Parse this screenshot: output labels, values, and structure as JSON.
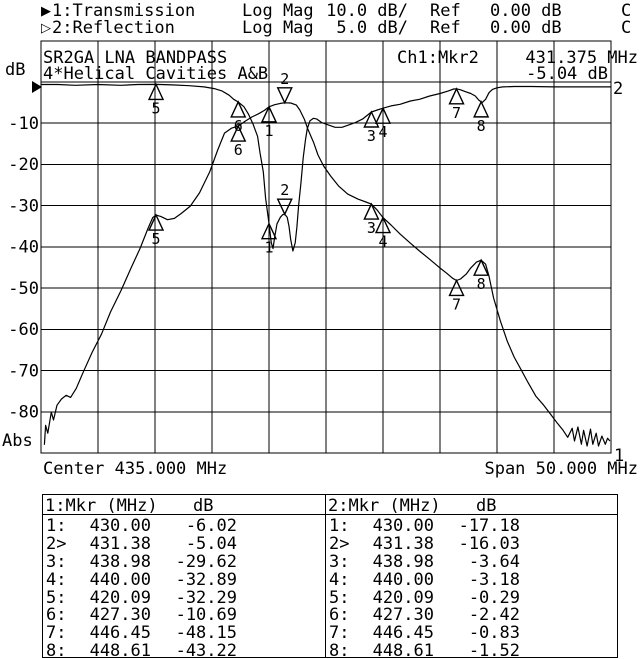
{
  "header": {
    "line1": {
      "indicator": "▶",
      "label": "1:Transmission",
      "format": "Log Mag",
      "scale": "10.0 dB/",
      "ref_label": "Ref",
      "ref_value": "0.00 dB",
      "cal": "C"
    },
    "line2": {
      "indicator": "▷",
      "label": "2:Reflection",
      "format": "Log Mag",
      "scale": "5.0 dB/",
      "ref_label": "Ref",
      "ref_value": "0.00 dB",
      "cal": "C"
    }
  },
  "plot": {
    "title_line1": "SR2GA LNA BANDPASS",
    "title_line2": "4*Helical Cavities A&B",
    "readout_channel": "Ch1:Mkr2",
    "readout_freq": "431.375 MHz",
    "readout_value": "-5.04 dB",
    "y_axis_unit": "dB",
    "y_axis_bottom": "Abs",
    "y_tick_labels": [
      "-10",
      "-20",
      "-30",
      "-40",
      "-50",
      "-60",
      "-70",
      "-80"
    ],
    "x_axis_center": "Center 435.000 MHz",
    "x_axis_span": "Span 50.000 MHz",
    "trace1_label": "1",
    "trace2_label": "2"
  },
  "chart_data": {
    "type": "line",
    "title": "SR2GA LNA BANDPASS - 4*Helical Cavities A&B",
    "x_center_mhz": 435.0,
    "x_span_mhz": 50.0,
    "xlim": [
      410,
      460
    ],
    "grid": {
      "x_divisions": 10,
      "y_divisions": 9,
      "grid_on": true
    },
    "series": [
      {
        "name": "Transmission",
        "scale_db_per_div": 10.0,
        "ref_db": 0.0,
        "ylim": [
          -90,
          0
        ],
        "points": [
          [
            410.3,
            -88
          ],
          [
            410.4,
            -83.3
          ],
          [
            410.6,
            -85.2
          ],
          [
            410.9,
            -80.1
          ],
          [
            411.1,
            -82
          ],
          [
            411.4,
            -78.4
          ],
          [
            411.8,
            -76.9
          ],
          [
            412.2,
            -76
          ],
          [
            412.6,
            -76.5
          ],
          [
            413.1,
            -74.3
          ],
          [
            413.7,
            -70.4
          ],
          [
            414.5,
            -65.5
          ],
          [
            415.3,
            -61.2
          ],
          [
            416.1,
            -55.8
          ],
          [
            417.0,
            -50.7
          ],
          [
            417.9,
            -45.1
          ],
          [
            418.7,
            -40.3
          ],
          [
            419.4,
            -35.4
          ],
          [
            419.8,
            -32.9
          ],
          [
            420.09,
            -32.29
          ],
          [
            420.5,
            -32.6
          ],
          [
            421.1,
            -33.4
          ],
          [
            421.7,
            -33.1
          ],
          [
            422.3,
            -31.9
          ],
          [
            423.1,
            -30.1
          ],
          [
            423.9,
            -26.9
          ],
          [
            424.8,
            -21.8
          ],
          [
            425.5,
            -16.5
          ],
          [
            426.1,
            -12.4
          ],
          [
            426.7,
            -11.2
          ],
          [
            427.3,
            -10.69
          ],
          [
            427.9,
            -9.5
          ],
          [
            428.5,
            -8.5
          ],
          [
            429.1,
            -7.7
          ],
          [
            429.6,
            -6.9
          ],
          [
            430.0,
            -6.02
          ],
          [
            430.5,
            -5.5
          ],
          [
            431.0,
            -5.2
          ],
          [
            431.38,
            -5.04
          ],
          [
            431.9,
            -5.1
          ],
          [
            432.4,
            -5.6
          ],
          [
            432.7,
            -6.8
          ],
          [
            433.1,
            -9
          ],
          [
            433.4,
            -11.4
          ],
          [
            433.9,
            -14.6
          ],
          [
            434.3,
            -17.7
          ],
          [
            434.8,
            -20.4
          ],
          [
            435.4,
            -22.8
          ],
          [
            436.1,
            -25.2
          ],
          [
            436.9,
            -27.2
          ],
          [
            437.8,
            -28.4
          ],
          [
            438.5,
            -29.1
          ],
          [
            438.98,
            -29.62
          ],
          [
            439.5,
            -31.1
          ],
          [
            440.0,
            -32.89
          ],
          [
            440.7,
            -34.7
          ],
          [
            441.5,
            -36.9
          ],
          [
            442.4,
            -39.1
          ],
          [
            443.2,
            -41
          ],
          [
            444.1,
            -43
          ],
          [
            444.9,
            -44.9
          ],
          [
            445.6,
            -46.4
          ],
          [
            446.1,
            -47.6
          ],
          [
            446.45,
            -48.15
          ],
          [
            446.8,
            -47.8
          ],
          [
            447.3,
            -46.6
          ],
          [
            447.7,
            -45.1
          ],
          [
            448.2,
            -43.7
          ],
          [
            448.61,
            -43.22
          ],
          [
            449.0,
            -44.2
          ],
          [
            449.3,
            -47.1
          ],
          [
            449.7,
            -52.4
          ],
          [
            450.3,
            -58
          ],
          [
            450.9,
            -62.9
          ],
          [
            451.5,
            -66.7
          ],
          [
            452.1,
            -69.7
          ],
          [
            452.7,
            -72.8
          ],
          [
            453.4,
            -76.2
          ],
          [
            454.1,
            -78.4
          ],
          [
            454.7,
            -80.6
          ],
          [
            455.3,
            -82.8
          ],
          [
            455.8,
            -84.5
          ],
          [
            456.2,
            -86.2
          ],
          [
            456.6,
            -84
          ],
          [
            456.8,
            -87.1
          ],
          [
            457.1,
            -83.7
          ],
          [
            457.4,
            -87.9
          ],
          [
            457.6,
            -84.5
          ],
          [
            457.9,
            -88.3
          ],
          [
            458.2,
            -84.2
          ],
          [
            458.4,
            -87.9
          ],
          [
            458.7,
            -85.2
          ],
          [
            458.9,
            -88.3
          ],
          [
            459.2,
            -85.9
          ],
          [
            459.5,
            -87.9
          ],
          [
            459.7,
            -86.4
          ],
          [
            459.9,
            -87.1
          ]
        ]
      },
      {
        "name": "Reflection",
        "scale_db_per_div": 5.0,
        "ref_db": 0.0,
        "ylim": [
          -45,
          0
        ],
        "points": [
          [
            410.0,
            -0.3
          ],
          [
            411.5,
            -0.3
          ],
          [
            413.0,
            -0.4
          ],
          [
            415.0,
            -0.3
          ],
          [
            417.0,
            -0.4
          ],
          [
            418.5,
            -0.3
          ],
          [
            420.09,
            -0.29
          ],
          [
            421.5,
            -0.35
          ],
          [
            423.0,
            -0.45
          ],
          [
            424.3,
            -0.6
          ],
          [
            425.2,
            -0.8
          ],
          [
            425.9,
            -1.1
          ],
          [
            426.5,
            -1.6
          ],
          [
            426.9,
            -2.1
          ],
          [
            427.3,
            -2.42
          ],
          [
            427.8,
            -3
          ],
          [
            428.2,
            -3.9
          ],
          [
            428.6,
            -5.1
          ],
          [
            429.0,
            -6.6
          ],
          [
            429.2,
            -8.5
          ],
          [
            429.5,
            -10.9
          ],
          [
            429.7,
            -14.1
          ],
          [
            430.0,
            -17.18
          ],
          [
            430.2,
            -19.5
          ],
          [
            430.35,
            -20.2
          ],
          [
            430.5,
            -18.8
          ],
          [
            430.7,
            -17.2
          ],
          [
            431.0,
            -16.4
          ],
          [
            431.2,
            -16.1
          ],
          [
            431.38,
            -16.03
          ],
          [
            431.6,
            -16.4
          ],
          [
            431.75,
            -17.5
          ],
          [
            431.9,
            -19.1
          ],
          [
            432.1,
            -20.5
          ],
          [
            432.3,
            -19.5
          ],
          [
            432.45,
            -17.6
          ],
          [
            432.6,
            -15
          ],
          [
            432.8,
            -12.3
          ],
          [
            433.0,
            -9.2
          ],
          [
            433.2,
            -7
          ],
          [
            433.35,
            -5.7
          ],
          [
            433.6,
            -4.7
          ],
          [
            433.9,
            -4.4
          ],
          [
            434.2,
            -4.5
          ],
          [
            434.6,
            -4.9
          ],
          [
            435.2,
            -5.2
          ],
          [
            435.8,
            -5.5
          ],
          [
            436.4,
            -5.5
          ],
          [
            437.0,
            -5.2
          ],
          [
            437.6,
            -4.9
          ],
          [
            438.2,
            -4.5
          ],
          [
            438.98,
            -3.64
          ],
          [
            439.5,
            -3.4
          ],
          [
            440.0,
            -3.18
          ],
          [
            440.7,
            -2.9
          ],
          [
            441.5,
            -2.7
          ],
          [
            442.4,
            -2.3
          ],
          [
            443.2,
            -2.1
          ],
          [
            444.1,
            -1.7
          ],
          [
            445.0,
            -1.4
          ],
          [
            445.7,
            -1.1
          ],
          [
            446.2,
            -0.85
          ],
          [
            446.45,
            -0.83
          ],
          [
            446.8,
            -0.95
          ],
          [
            447.3,
            -1.2
          ],
          [
            447.7,
            -1.4
          ],
          [
            448.1,
            -1.7
          ],
          [
            448.4,
            -2.2
          ],
          [
            448.7,
            -2.5
          ],
          [
            449.0,
            -2.1
          ],
          [
            449.3,
            -1.3
          ],
          [
            449.6,
            -0.9
          ],
          [
            450.0,
            -0.7
          ],
          [
            450.5,
            -0.6
          ],
          [
            451.5,
            -0.55
          ],
          [
            453.0,
            -0.55
          ],
          [
            455.0,
            -0.6
          ],
          [
            457.0,
            -0.6
          ],
          [
            459.0,
            -0.6
          ],
          [
            460.0,
            -0.6
          ]
        ]
      }
    ],
    "markers": [
      {
        "n": "1",
        "f": 430.0,
        "db_trace1": -6.02,
        "db_trace2": -17.18,
        "active": false
      },
      {
        "n": "2",
        "f": 431.38,
        "db_trace1": -5.04,
        "db_trace2": -16.03,
        "active": true
      },
      {
        "n": "3",
        "f": 438.98,
        "db_trace1": -29.62,
        "db_trace2": -3.64,
        "active": false
      },
      {
        "n": "4",
        "f": 440.0,
        "db_trace1": -32.89,
        "db_trace2": -3.18,
        "active": false
      },
      {
        "n": "5",
        "f": 420.09,
        "db_trace1": -32.29,
        "db_trace2": -0.29,
        "active": false
      },
      {
        "n": "6",
        "f": 427.3,
        "db_trace1": -10.69,
        "db_trace2": -2.42,
        "active": false
      },
      {
        "n": "7",
        "f": 446.45,
        "db_trace1": -48.15,
        "db_trace2": -0.83,
        "active": false
      },
      {
        "n": "8",
        "f": 448.61,
        "db_trace1": -43.22,
        "db_trace2": -1.52,
        "active": false
      }
    ]
  },
  "tables": [
    {
      "header": "1:Mkr (MHz)",
      "unit": "dB",
      "rows": [
        {
          "num": "1:",
          "freq": "430.00",
          "db": "-6.02"
        },
        {
          "num": "2>",
          "freq": "431.38",
          "db": "-5.04"
        },
        {
          "num": "3:",
          "freq": "438.98",
          "db": "-29.62"
        },
        {
          "num": "4:",
          "freq": "440.00",
          "db": "-32.89"
        },
        {
          "num": "5:",
          "freq": "420.09",
          "db": "-32.29"
        },
        {
          "num": "6:",
          "freq": "427.30",
          "db": "-10.69"
        },
        {
          "num": "7:",
          "freq": "446.45",
          "db": "-48.15"
        },
        {
          "num": "8:",
          "freq": "448.61",
          "db": "-43.22"
        }
      ]
    },
    {
      "header": "2:Mkr (MHz)",
      "unit": "dB",
      "rows": [
        {
          "num": "1:",
          "freq": "430.00",
          "db": "-17.18"
        },
        {
          "num": "2>",
          "freq": "431.38",
          "db": "-16.03"
        },
        {
          "num": "3:",
          "freq": "438.98",
          "db": "-3.64"
        },
        {
          "num": "4:",
          "freq": "440.00",
          "db": "-3.18"
        },
        {
          "num": "5:",
          "freq": "420.09",
          "db": "-0.29"
        },
        {
          "num": "6:",
          "freq": "427.30",
          "db": "-2.42"
        },
        {
          "num": "7:",
          "freq": "446.45",
          "db": "-0.83"
        },
        {
          "num": "8:",
          "freq": "448.61",
          "db": "-1.52"
        }
      ]
    }
  ]
}
